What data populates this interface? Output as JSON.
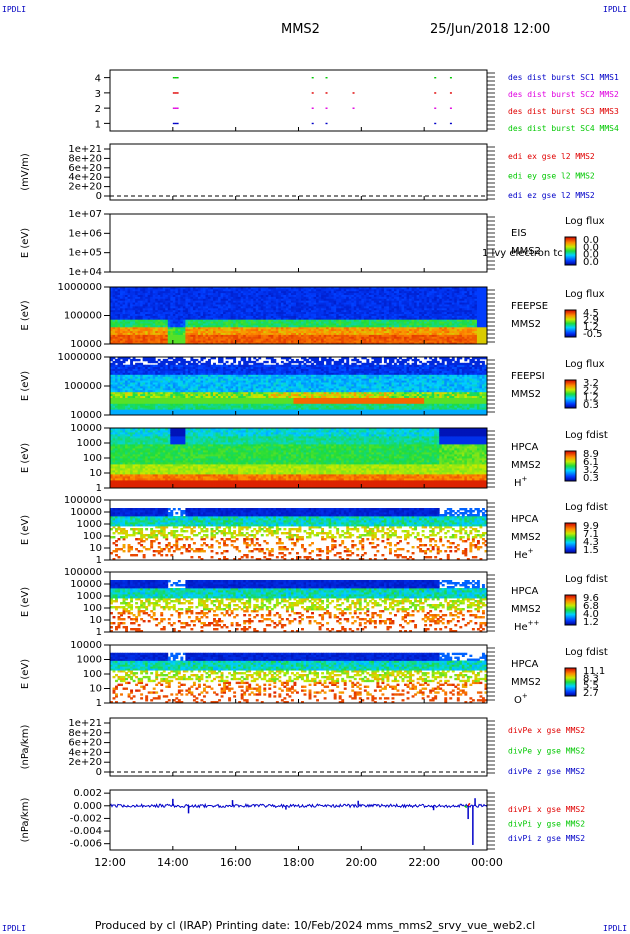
{
  "corner_labels": {
    "tl": "IPDLI",
    "tr": "IPDLI",
    "bl": "IPDLI",
    "br": "IPDLI"
  },
  "header": {
    "title": "MMS2",
    "datetime": "25/Jun/2018 12:00"
  },
  "footer": {
    "text": "Produced by cl (IRAP)   Printing date: 10/Feb/2024   mms_mms2_srvy_vue_web2.cl"
  },
  "colors": {
    "red": "#e00000",
    "magenta": "#e000e0",
    "green": "#00c800",
    "blue": "#0000c8",
    "black": "#000000"
  },
  "chart_data": [
    {
      "type": "scatter",
      "id": "burst",
      "yticks": [
        "1",
        "2",
        "3",
        "4"
      ],
      "ylim": [
        0.5,
        4.5
      ],
      "series": [
        {
          "name": "des dist burst SC1 MMS1",
          "color": "#0000c8",
          "y": 1,
          "x": [
            14.0,
            14.06,
            14.12,
            18.42,
            18.86,
            22.32,
            22.82
          ]
        },
        {
          "name": "des dist burst SC2 MMS2",
          "color": "#e000e0",
          "y": 2,
          "x": [
            14.0,
            14.06,
            14.12,
            18.42,
            18.86,
            19.72,
            22.32,
            22.82
          ]
        },
        {
          "name": "des dist burst SC3 MMS3",
          "color": "#e00000",
          "y": 3,
          "x": [
            14.0,
            14.06,
            14.12,
            18.42,
            18.86,
            19.72,
            22.32,
            22.82
          ]
        },
        {
          "name": "des dist burst SC4 MMS4",
          "color": "#00c800",
          "y": 4,
          "x": [
            14.0,
            14.06,
            14.12,
            18.42,
            18.86,
            22.32,
            22.82
          ]
        }
      ],
      "legend": [
        "des dist burst SC1 MMS1",
        "des dist burst SC2 MMS2",
        "des dist burst SC3 MMS3",
        "des dist burst SC4 MMS4"
      ],
      "legend_colors": [
        "#0000c8",
        "#e000e0",
        "#e00000",
        "#00c800"
      ]
    },
    {
      "type": "line",
      "id": "edi",
      "ylabel": "(mV/m)",
      "yticks": [
        "0",
        "2e+20",
        "4e+20",
        "6e+20",
        "8e+20",
        "1e+21"
      ],
      "legend": [
        "edi ex gse l2 MMS2",
        "edi ey gse l2 MMS2",
        "edi ez gse l2 MMS2"
      ],
      "legend_colors": [
        "#e00000",
        "#00c800",
        "#0000c8"
      ]
    },
    {
      "type": "heatmap",
      "id": "eis",
      "ylabel": "E (eV)",
      "yticks": [
        "1e+04",
        "1e+05",
        "1e+06",
        "1e+07"
      ],
      "labels": [
        "EIS",
        "MMS2"
      ],
      "overlay_label": "1 lvy electron tc",
      "colorbar": {
        "title": "Log flux",
        "ticks": [
          "0.0",
          "0.0",
          "0.0",
          "0.0"
        ]
      }
    },
    {
      "type": "heatmap",
      "id": "feepse",
      "ylabel": "E (eV)",
      "yticks": [
        "10000",
        "100000",
        "1000000"
      ],
      "labels": [
        "FEEPSE",
        "MMS2"
      ],
      "colorbar": {
        "title": "Log flux",
        "ticks": [
          "4.5",
          "2.9",
          "1.2",
          "-0.5"
        ]
      }
    },
    {
      "type": "heatmap",
      "id": "feepsi",
      "ylabel": "E (eV)",
      "yticks": [
        "10000",
        "100000",
        "1000000"
      ],
      "labels": [
        "FEEPSI",
        "MMS2"
      ],
      "colorbar": {
        "title": "Log flux",
        "ticks": [
          "3.2",
          "2.2",
          "1.2",
          "0.3"
        ]
      }
    },
    {
      "type": "heatmap",
      "id": "hpca_h",
      "ylabel": "E (eV)",
      "yticks": [
        "1",
        "10",
        "100",
        "1000",
        "10000"
      ],
      "labels": [
        "HPCA",
        "MMS2",
        "H+"
      ],
      "colorbar": {
        "title": "Log fdist",
        "ticks": [
          "8.9",
          "6.1",
          "3.2",
          "0.3"
        ]
      }
    },
    {
      "type": "heatmap",
      "id": "hpca_he",
      "ylabel": "E (eV)",
      "yticks": [
        "1",
        "10",
        "100",
        "1000",
        "10000",
        "100000"
      ],
      "labels": [
        "HPCA",
        "MMS2",
        "He+"
      ],
      "colorbar": {
        "title": "Log fdist",
        "ticks": [
          "9.9",
          "7.1",
          "4.3",
          "1.5"
        ]
      }
    },
    {
      "type": "heatmap",
      "id": "hpca_hepp",
      "ylabel": "E (eV)",
      "yticks": [
        "1",
        "10",
        "100",
        "1000",
        "10000",
        "100000"
      ],
      "labels": [
        "HPCA",
        "MMS2",
        "He++"
      ],
      "colorbar": {
        "title": "Log fdist",
        "ticks": [
          "9.6",
          "6.8",
          "4.0",
          "1.2"
        ]
      }
    },
    {
      "type": "heatmap",
      "id": "hpca_o",
      "ylabel": "E (eV)",
      "yticks": [
        "1",
        "10",
        "100",
        "1000",
        "10000"
      ],
      "labels": [
        "HPCA",
        "MMS2",
        "O+"
      ],
      "colorbar": {
        "title": "Log fdist",
        "ticks": [
          "11.1",
          "8.3",
          "5.5",
          "2.7"
        ]
      }
    },
    {
      "type": "line",
      "id": "divpe",
      "ylabel": "(nPa/km)",
      "yticks": [
        "0",
        "2e+20",
        "4e+20",
        "6e+20",
        "8e+20",
        "1e+21"
      ],
      "legend": [
        "divPe x gse MMS2",
        "divPe y gse MMS2",
        "divPe z gse MMS2"
      ],
      "legend_colors": [
        "#e00000",
        "#00c800",
        "#0000c8"
      ]
    },
    {
      "type": "line",
      "id": "divpi",
      "ylabel": "(nPa/km)",
      "yticks": [
        "-0.006",
        "-0.004",
        "-0.002",
        "0.000",
        "0.002"
      ],
      "ylim": [
        -0.007,
        0.0025
      ],
      "series_spikes": [
        {
          "x": 14.0,
          "y": 0.0011
        },
        {
          "x": 14.5,
          "y": -0.0012
        },
        {
          "x": 15.9,
          "y": 0.0009
        },
        {
          "x": 17.6,
          "y": -0.0006
        },
        {
          "x": 19.9,
          "y": 0.0008
        },
        {
          "x": 22.3,
          "y": -0.0007
        },
        {
          "x": 23.4,
          "y": -0.0021
        },
        {
          "x": 23.55,
          "y": -0.0062
        },
        {
          "x": 23.62,
          "y": 0.0012
        }
      ],
      "legend": [
        "divPi x gse MMS2",
        "divPi y gse MMS2",
        "divPi z gse MMS2"
      ],
      "legend_colors": [
        "#e00000",
        "#00c800",
        "#0000c8"
      ]
    }
  ],
  "time_axis": {
    "ticks": [
      "12:00",
      "14:00",
      "16:00",
      "18:00",
      "20:00",
      "22:00",
      "00:00"
    ],
    "range": [
      12,
      24
    ]
  }
}
